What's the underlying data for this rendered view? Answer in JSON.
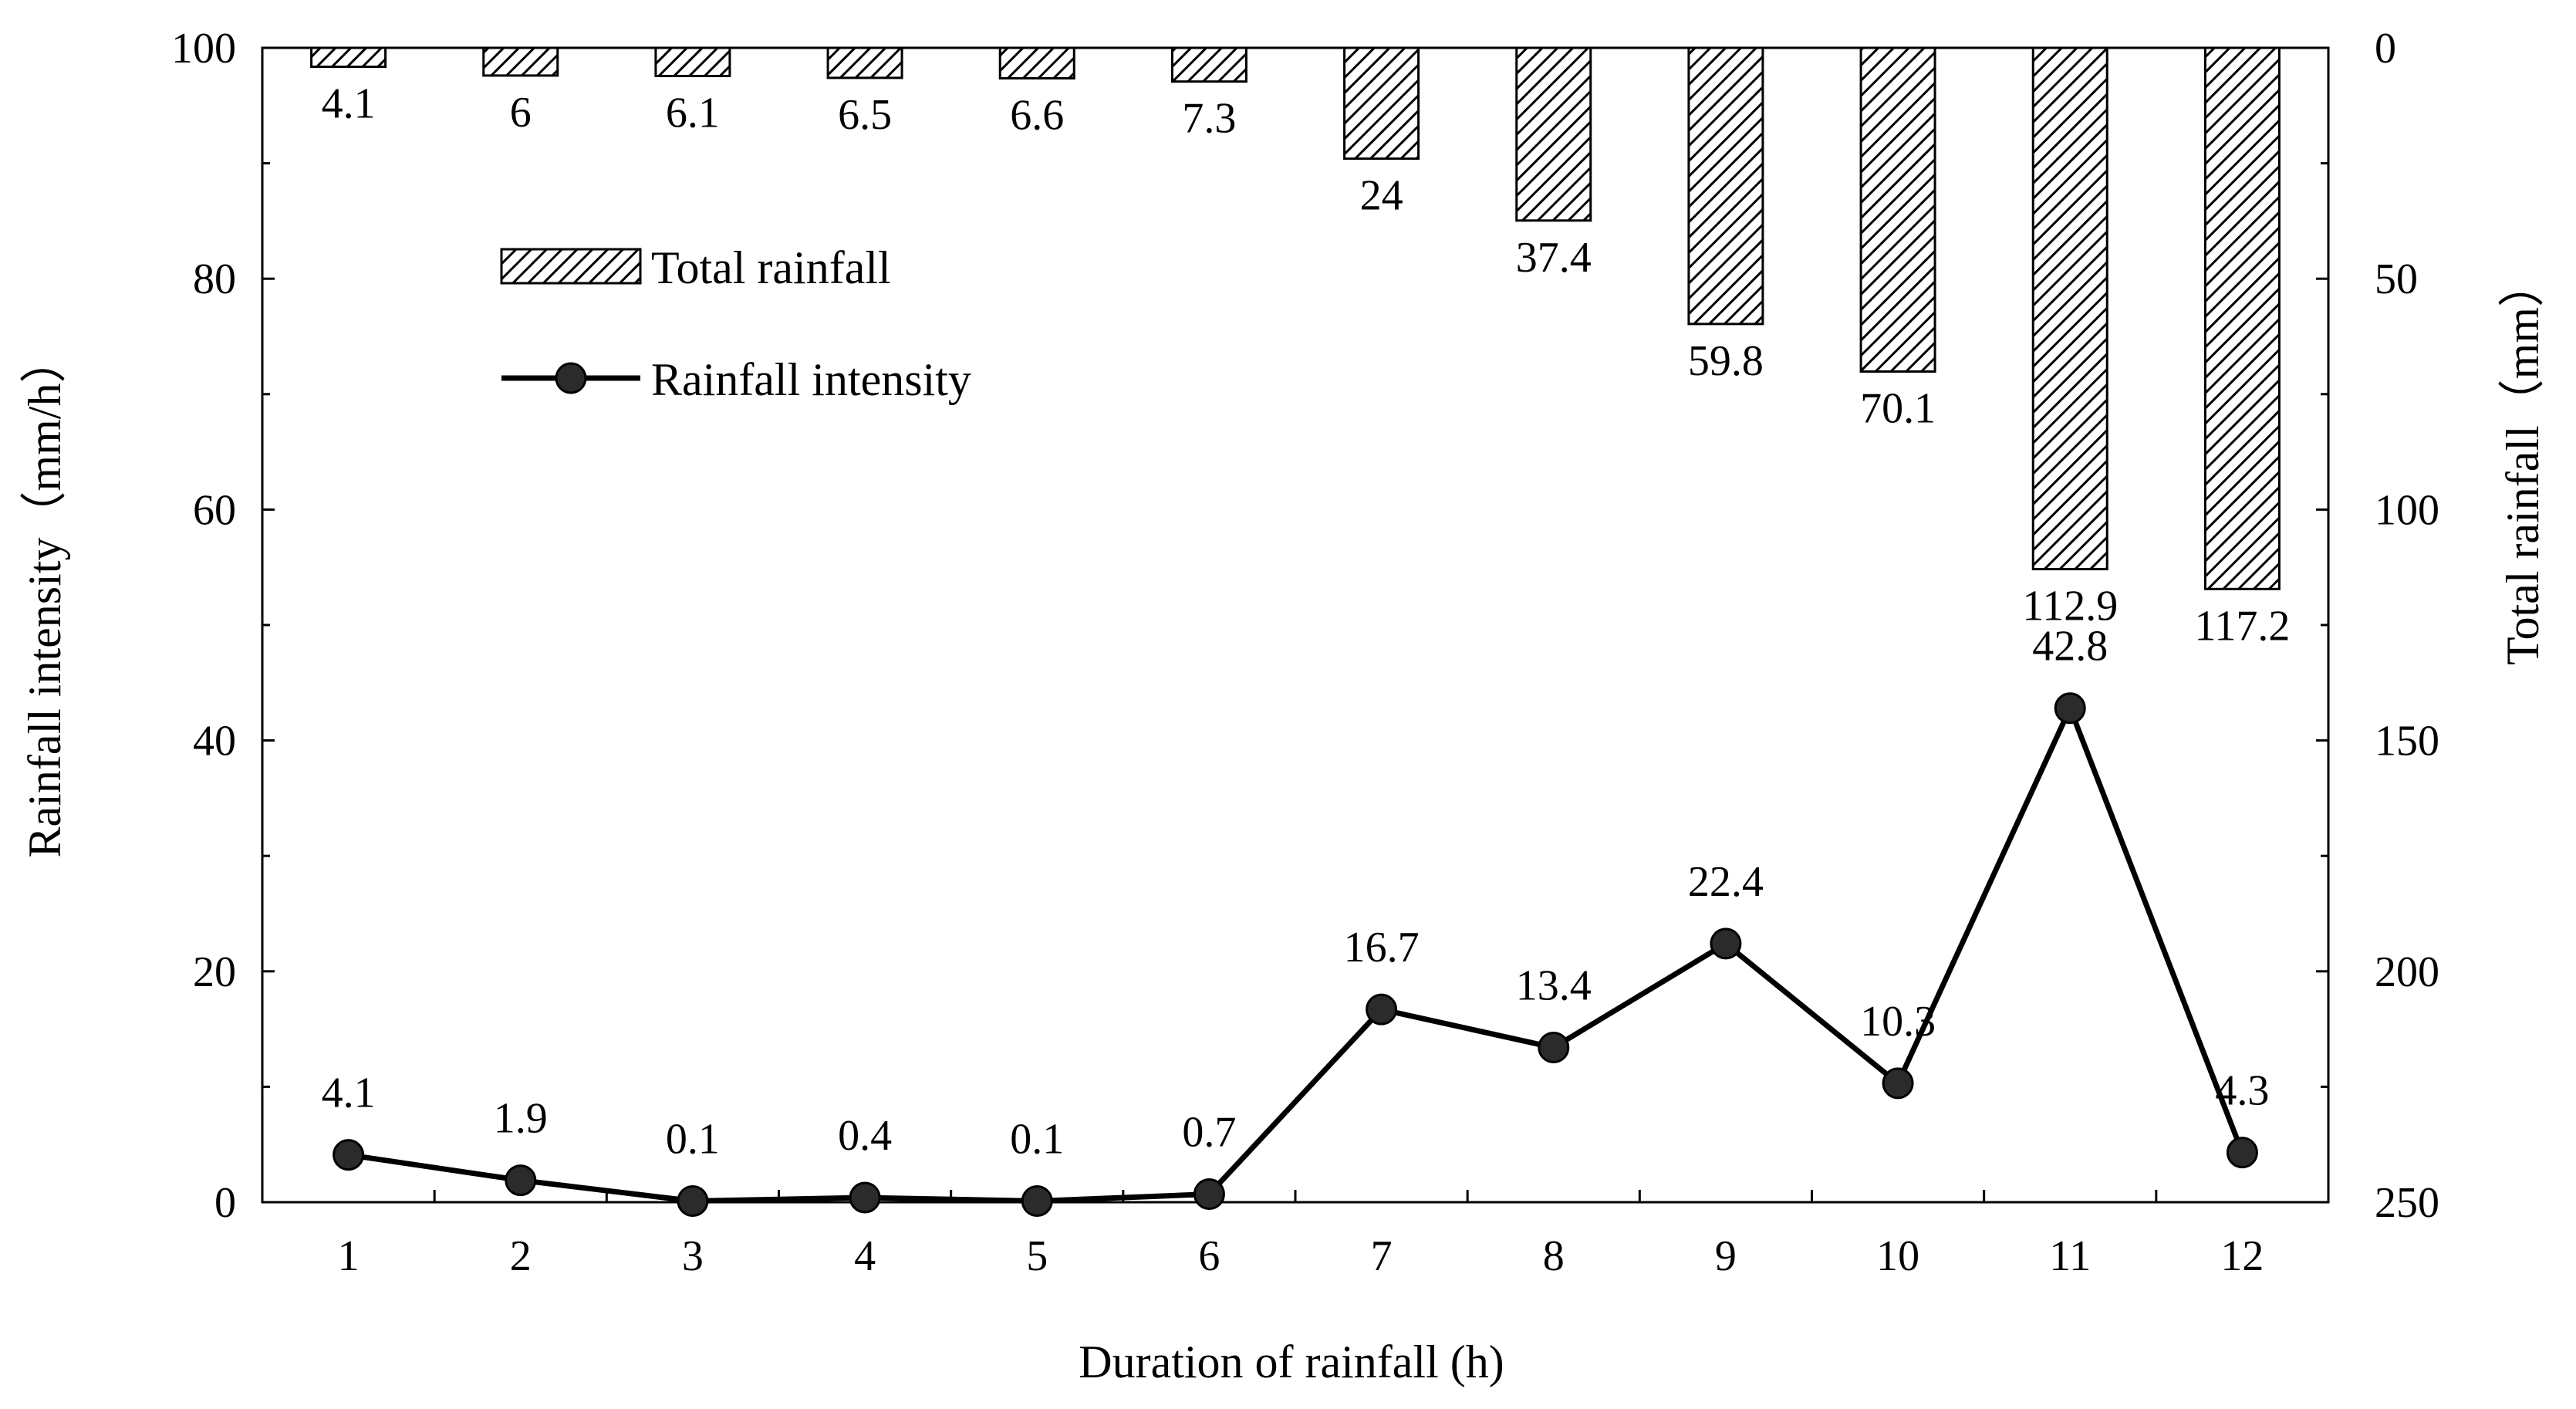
{
  "chart_data": {
    "type": "bar+line",
    "xlabel": "Duration of rainfall (h)",
    "ylabel_left": "Rainfall intensity（mm/h）",
    "ylabel_right": "Total rainfall（mm）",
    "categories": [
      "1",
      "2",
      "3",
      "4",
      "5",
      "6",
      "7",
      "8",
      "9",
      "10",
      "11",
      "12"
    ],
    "ylim_left": [
      0,
      100
    ],
    "yticks_left": [
      0,
      20,
      40,
      60,
      80,
      100
    ],
    "ylim_right": [
      0,
      250
    ],
    "yticks_right": [
      0,
      50,
      100,
      150,
      200,
      250
    ],
    "right_axis_inverted": true,
    "series": [
      {
        "name": "Total rainfall",
        "kind": "bar",
        "axis": "right",
        "pattern": "diagonal-hatch",
        "values": [
          4.1,
          6,
          6.1,
          6.5,
          6.6,
          7.3,
          24,
          37.4,
          59.8,
          70.1,
          112.9,
          117.2
        ],
        "labels": [
          "4.1",
          "6",
          "6.1",
          "6.5",
          "6.6",
          "7.3",
          "24",
          "37.4",
          "59.8",
          "70.1",
          "112.9",
          "117.2"
        ]
      },
      {
        "name": "Rainfall intensity",
        "kind": "line",
        "axis": "left",
        "marker": "circle",
        "values": [
          4.1,
          1.9,
          0.1,
          0.4,
          0.1,
          0.7,
          16.7,
          13.4,
          22.4,
          10.3,
          42.8,
          4.3
        ],
        "labels": [
          "4.1",
          "1.9",
          "0.1",
          "0.4",
          "0.1",
          "0.7",
          "16.7",
          "13.4",
          "22.4",
          "10.3",
          "42.8",
          "4.3"
        ]
      }
    ],
    "legend": {
      "position": "top-left-inside",
      "items": [
        {
          "label": "Total rainfall",
          "symbol": "hatched-box"
        },
        {
          "label": "Rainfall intensity",
          "symbol": "line-with-circle"
        }
      ]
    },
    "colors": {
      "line": "#000000",
      "marker": "#2b2b2b",
      "bar_stroke": "#000000",
      "hatch": "#000000",
      "background": "#ffffff"
    }
  }
}
